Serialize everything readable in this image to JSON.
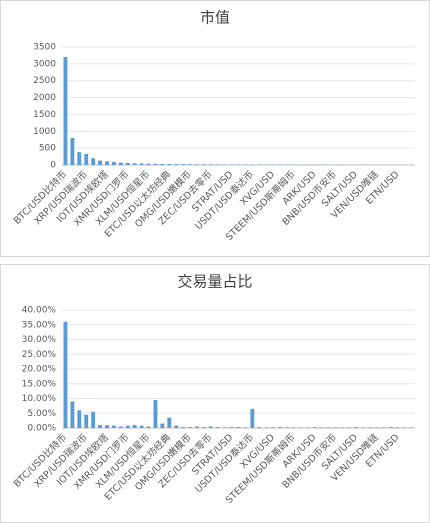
{
  "chart_data": [
    {
      "type": "bar",
      "title": "市值",
      "color": "#5b9bd5",
      "grid": true,
      "ylim": [
        0,
        3500
      ],
      "yticks": [
        0,
        500,
        1000,
        1500,
        2000,
        2500,
        3000,
        3500
      ],
      "categories": [
        "BTC/USD比特币",
        null,
        null,
        "XRP/USD瑞波币",
        null,
        null,
        "IOT/USD埃欧塔",
        null,
        null,
        "XMR/USD门罗币",
        null,
        null,
        "XLM/USD恒星币",
        null,
        null,
        "ETC/USD以太坊经典",
        null,
        null,
        "OMG/USD嫩模币",
        null,
        null,
        "ZEC/USD去零币",
        null,
        null,
        "STRAT/USD",
        null,
        null,
        "USDT/USD泰达币",
        null,
        null,
        "XVG/USD",
        null,
        null,
        "STEEM/USD斯蒂姆币",
        null,
        null,
        "ARK/USD",
        null,
        null,
        "BNB/USD币安币",
        null,
        null,
        "SALT/USD",
        null,
        null,
        "VEN/USD唯链",
        null,
        null,
        "ETN/USD",
        null,
        null
      ],
      "values": [
        3200,
        800,
        380,
        330,
        200,
        130,
        110,
        90,
        70,
        60,
        50,
        45,
        40,
        35,
        30,
        30,
        25,
        25,
        20,
        20,
        20,
        18,
        18,
        15,
        15,
        15,
        15,
        14,
        13,
        12,
        12,
        11,
        11,
        10,
        10,
        10,
        9,
        9,
        9,
        8,
        8,
        8,
        8,
        7,
        7,
        7,
        7,
        6,
        6,
        6,
        6
      ]
    },
    {
      "type": "bar",
      "title": "交易量占比",
      "color": "#5b9bd5",
      "grid": true,
      "ylim": [
        0,
        40
      ],
      "yticks": [
        {
          "value": 0,
          "label": "0.00%"
        },
        {
          "value": 5,
          "label": "5.00%"
        },
        {
          "value": 10,
          "label": "10.00%"
        },
        {
          "value": 15,
          "label": "15.00%"
        },
        {
          "value": 20,
          "label": "20.00%"
        },
        {
          "value": 25,
          "label": "25.00%"
        },
        {
          "value": 30,
          "label": "30.00%"
        },
        {
          "value": 35,
          "label": "35.00%"
        },
        {
          "value": 40,
          "label": "40.00%"
        }
      ],
      "categories": [
        "BTC/USD比特币",
        null,
        null,
        "XRP/USD瑞波币",
        null,
        null,
        "IOT/USD埃欧塔",
        null,
        null,
        "XMR/USD门罗币",
        null,
        null,
        "XLM/USD恒星币",
        null,
        null,
        "ETC/USD以太坊经典",
        null,
        null,
        "OMG/USD嫩模币",
        null,
        null,
        "ZEC/USD去零币",
        null,
        null,
        "STRAT/USD",
        null,
        null,
        "USDT/USD泰达币",
        null,
        null,
        "XVG/USD",
        null,
        null,
        "STEEM/USD斯蒂姆币",
        null,
        null,
        "ARK/USD",
        null,
        null,
        "BNB/USD币安币",
        null,
        null,
        "SALT/USD",
        null,
        null,
        "VEN/USD唯链",
        null,
        null,
        "ETN/USD",
        null,
        null
      ],
      "values": [
        36,
        9,
        6,
        4.5,
        5.5,
        1,
        1,
        0.8,
        0.5,
        0.8,
        1,
        0.8,
        0.5,
        9.5,
        1.5,
        3.5,
        0.8,
        0.3,
        0.3,
        0.5,
        0.3,
        0.5,
        0.3,
        0.2,
        0.3,
        0.3,
        0.2,
        6.5,
        0.3,
        0.2,
        0.2,
        0.3,
        0.2,
        0.2,
        0.2,
        0.2,
        0.3,
        0.2,
        0.2,
        0.2,
        0.2,
        0.2,
        0.3,
        0.2,
        0.2,
        0.2,
        0.2,
        0.3,
        0.2,
        0.2,
        0.2
      ]
    }
  ]
}
